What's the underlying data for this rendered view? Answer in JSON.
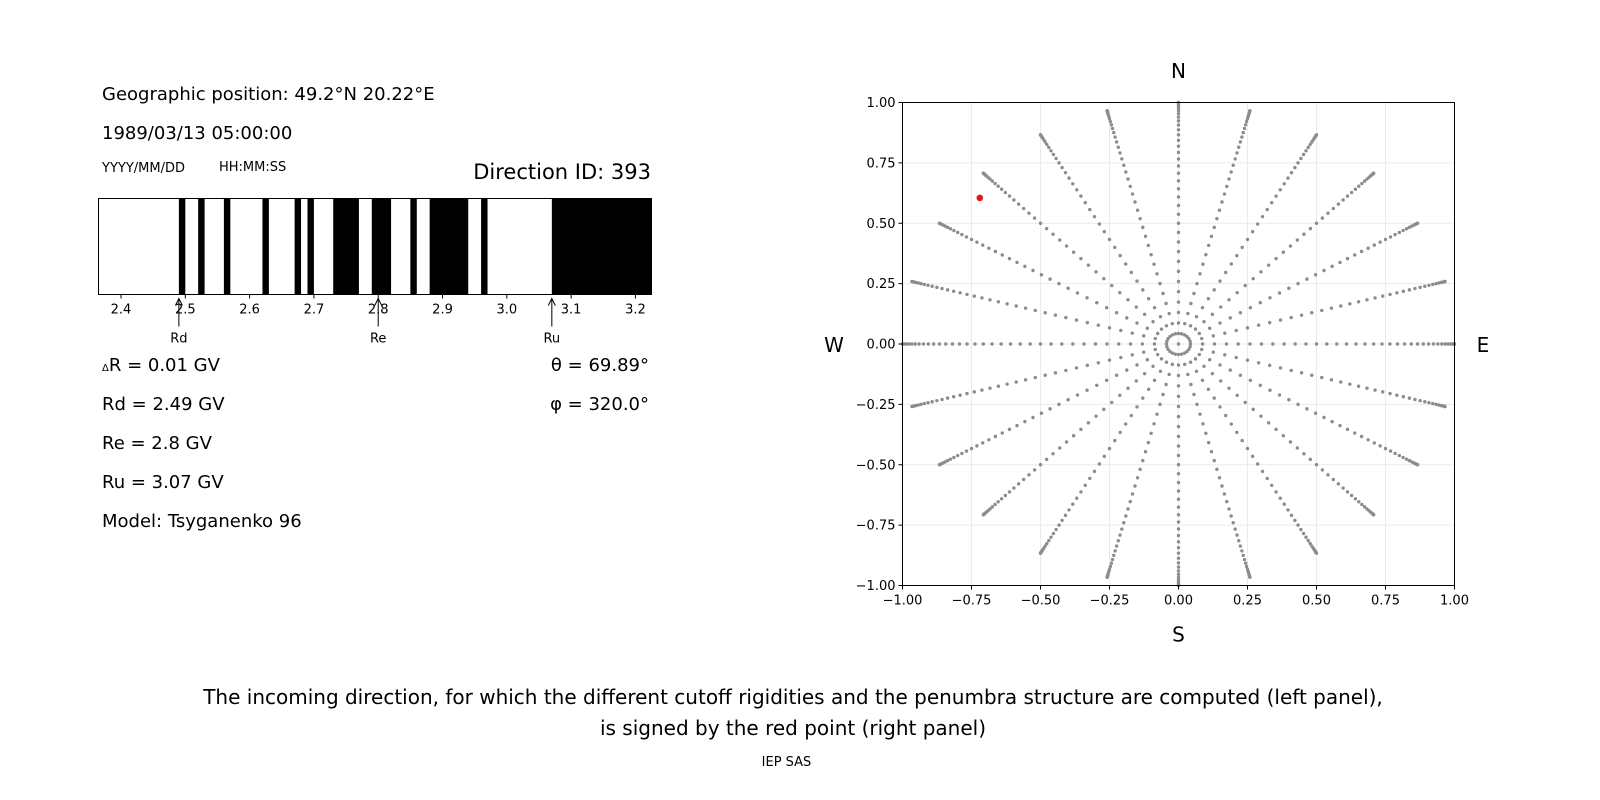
{
  "left_panel": {
    "geo_position": "Geographic position: 49.2°N 20.22°E",
    "datetime": "1989/03/13 05:00:00",
    "date_format_hint": "YYYY/MM/DD",
    "time_format_hint": "HH:MM:SS",
    "direction_id": "Direction ID: 393",
    "delta_r": "R = 0.01 GV",
    "delta_symbol": "Δ",
    "theta": "θ = 69.89°",
    "phi": "φ = 320.0°",
    "rd": "Rd = 2.49 GV",
    "re": "Re = 2.8 GV",
    "ru": "Ru = 3.07 GV",
    "model": "Model: Tsyganenko 96",
    "marker_labels": {
      "rd": "Rd",
      "re": "Re",
      "ru": "Ru"
    }
  },
  "right_panel": {
    "compass": {
      "n": "N",
      "s": "S",
      "w": "W",
      "e": "E"
    }
  },
  "caption": {
    "line1": "The incoming direction, for which the different cutoff rigidities and the penumbra structure are computed (left panel),",
    "line2": "is signed by the red point (right panel)"
  },
  "footer": "IEP SAS",
  "colors": {
    "highlight": "#e31a1c",
    "grid_point": "#8c8c8c",
    "bar_black": "#000000"
  },
  "chart_data": [
    {
      "type": "bar",
      "name": "penumbra",
      "xlim": [
        2.365,
        3.225
      ],
      "xticks": [
        2.4,
        2.5,
        2.6,
        2.7,
        2.8,
        2.9,
        3.0,
        3.1,
        3.2
      ],
      "xtick_labels": [
        "2.4",
        "2.5",
        "2.6",
        "2.7",
        "2.8",
        "2.9",
        "3.0",
        "3.1",
        "3.2"
      ],
      "forbidden_intervals": [
        [
          2.49,
          2.5
        ],
        [
          2.52,
          2.53
        ],
        [
          2.56,
          2.57
        ],
        [
          2.62,
          2.63
        ],
        [
          2.67,
          2.68
        ],
        [
          2.69,
          2.7
        ],
        [
          2.73,
          2.77
        ],
        [
          2.79,
          2.82
        ],
        [
          2.85,
          2.86
        ],
        [
          2.88,
          2.94
        ],
        [
          2.96,
          2.97
        ],
        [
          3.07,
          3.225
        ]
      ],
      "markers": {
        "Rd": 2.49,
        "Re": 2.8,
        "Ru": 3.07
      }
    },
    {
      "type": "scatter",
      "name": "incoming-directions",
      "xlim": [
        -1.0,
        1.0
      ],
      "ylim": [
        -1.0,
        1.0
      ],
      "xticks": [
        -1.0,
        -0.75,
        -0.5,
        -0.25,
        0.0,
        0.25,
        0.5,
        0.75,
        1.0
      ],
      "yticks": [
        -1.0,
        -0.75,
        -0.5,
        -0.25,
        0.0,
        0.25,
        0.5,
        0.75,
        1.0
      ],
      "xtick_labels": [
        "−1.00",
        "−0.75",
        "−0.50",
        "−0.25",
        "0.00",
        "0.25",
        "0.50",
        "0.75",
        "1.00"
      ],
      "ytick_labels": [
        "−1.00",
        "−0.75",
        "−0.50",
        "−0.25",
        "0.00",
        "0.25",
        "0.50",
        "0.75",
        "1.00"
      ],
      "grid": true,
      "grid_description": "zenith angle 0-90 deg in 2.5 deg steps along 24 azimuths (every 15 deg); radius = sin(zenith)",
      "zenith_max_deg": 90,
      "zenith_step_deg": 2.5,
      "azimuth_step_deg": 15,
      "highlight": {
        "x": -0.72,
        "y": 0.605
      }
    }
  ]
}
